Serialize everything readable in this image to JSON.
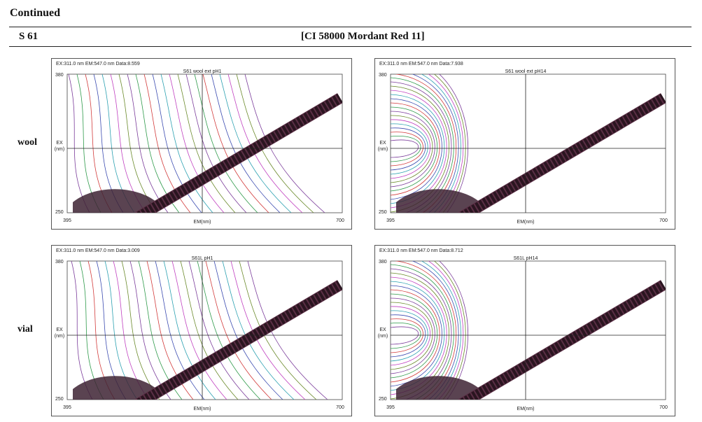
{
  "heading": "Continued",
  "sample": "S 61",
  "dye": "[CI 58000 Mordant Red 11]",
  "axes": {
    "y_top": "380",
    "y_bottom": "250",
    "x_left": "395",
    "x_right": "700",
    "y_label_1": "EX",
    "y_label_2": "(nm)",
    "x_label": "EM(nm)"
  },
  "rows": [
    {
      "label": "wool",
      "panels": [
        {
          "info": "EX:311.0 nm EM:547.0 nm Data:8.559",
          "title": "S61 wool ext pH1"
        },
        {
          "info": "EX:311.0 nm EM:547.0 nm Data:7.938",
          "title": "S61 wool ext pH14"
        }
      ]
    },
    {
      "label": "vial",
      "panels": [
        {
          "info": "EX:311.0 nm EM:547.0 nm Data:3.009",
          "title": "S61L pH1"
        },
        {
          "info": "EX:311.0 nm EM:547.0 nm Data:8.712",
          "title": "S61L pH14"
        }
      ]
    }
  ]
}
